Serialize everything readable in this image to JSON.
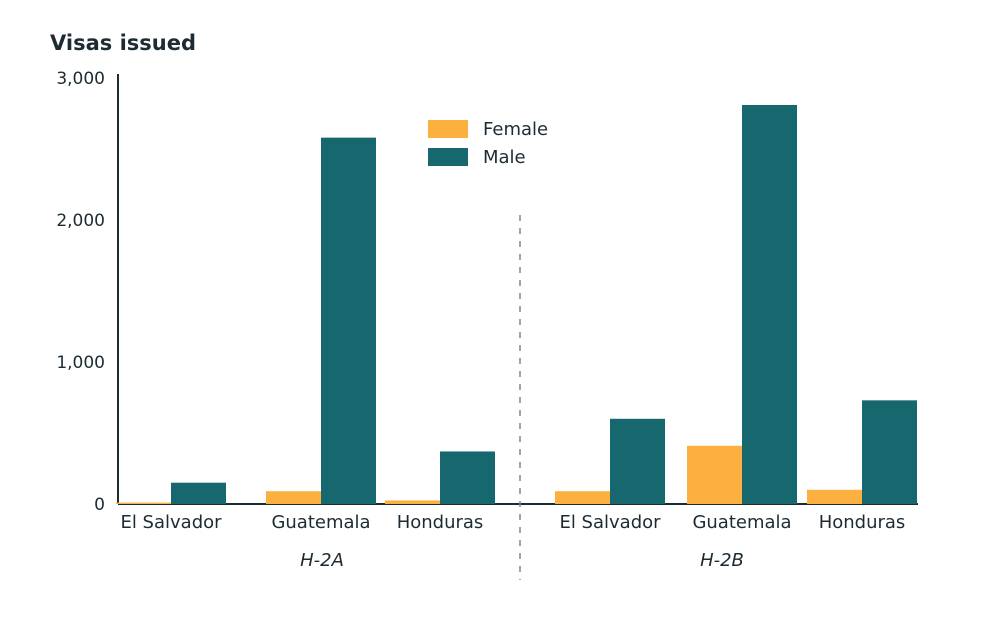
{
  "chart_data": {
    "type": "bar",
    "ylabel": "Visas issued",
    "ylim": [
      0,
      3000
    ],
    "yticks": [
      "0",
      "1,000",
      "2,000",
      "3,000"
    ],
    "ytick_values": [
      0,
      1000,
      2000,
      3000
    ],
    "legend_position": "top-center",
    "groups": [
      {
        "label": "H-2A",
        "categories": [
          "El Salvador",
          "Guatemala",
          "Honduras"
        ],
        "series": [
          {
            "name": "Female",
            "values": [
              10,
              90,
              25
            ]
          },
          {
            "name": "Male",
            "values": [
              150,
              2580,
              370
            ]
          }
        ]
      },
      {
        "label": "H-2B",
        "categories": [
          "El Salvador",
          "Guatemala",
          "Honduras"
        ],
        "series": [
          {
            "name": "Female",
            "values": [
              90,
              410,
              100
            ]
          },
          {
            "name": "Male",
            "values": [
              600,
              2810,
              730
            ]
          }
        ]
      }
    ],
    "colors": {
      "Female": "#fbb040",
      "Male": "#17676e"
    }
  }
}
